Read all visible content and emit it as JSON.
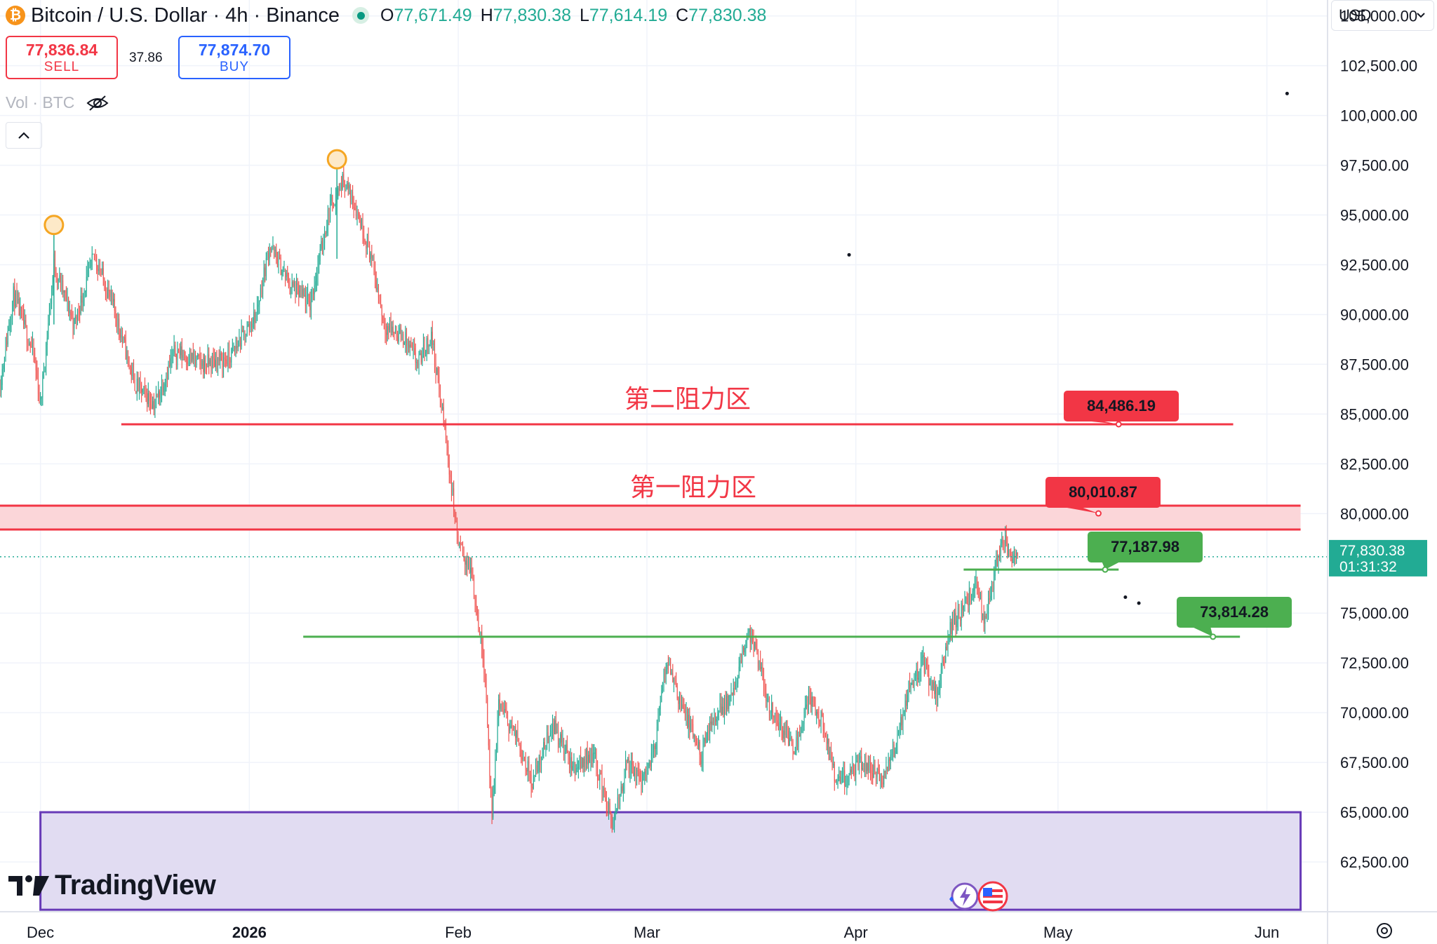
{
  "header": {
    "symbol_title": "Bitcoin / U.S. Dollar · 4h · Binance",
    "ohlc": {
      "open_label": "O",
      "open": "77,671.49",
      "high_label": "H",
      "high": "77,830.38",
      "low_label": "L",
      "low": "77,614.19",
      "close_label": "C",
      "close": "77,830.38"
    },
    "coin_icon": "bitcoin-icon"
  },
  "trade": {
    "sell_price": "77,836.84",
    "sell_label": "SELL",
    "spread": "37.86",
    "buy_price": "77,874.70",
    "buy_label": "BUY"
  },
  "volume_indicator": {
    "label": "Vol · BTC",
    "icon": "eye-crossed-icon"
  },
  "currency_selector": {
    "value": "USD"
  },
  "branding": {
    "logo_text": "TradingView"
  },
  "colors": {
    "up": "#22ab94",
    "down": "#ef5350",
    "resistance": "#f23645",
    "support": "#4caf50",
    "demand_zone_border": "#673ab7",
    "demand_zone_fill": "#e1dcf2",
    "last_price_tag": "#22ab94"
  },
  "chart_data": {
    "type": "candlestick",
    "timeframe": "4h",
    "x_axis": {
      "tick_labels": [
        {
          "label": "Dec",
          "date": "2025-12-01"
        },
        {
          "label": "2026",
          "date": "2026-01-01"
        },
        {
          "label": "Feb",
          "date": "2026-02-01"
        },
        {
          "label": "Mar",
          "date": "2026-03-01"
        },
        {
          "label": "Apr",
          "date": "2026-04-01"
        },
        {
          "label": "May",
          "date": "2026-05-01"
        },
        {
          "label": "Jun",
          "date": "2026-06-01"
        }
      ],
      "range": [
        "2025-11-25",
        "2026-06-10"
      ]
    },
    "y_axis": {
      "range": [
        60000,
        105800
      ],
      "tick_labels": [
        "105,000.00",
        "102,500.00",
        "100,000.00",
        "97,500.00",
        "95,000.00",
        "92,500.00",
        "90,000.00",
        "87,500.00",
        "85,000.00",
        "82,500.00",
        "80,000.00",
        "75,000.00",
        "72,500.00",
        "70,000.00",
        "67,500.00",
        "65,000.00",
        "62,500.00"
      ],
      "tick_values": [
        105000,
        102500,
        100000,
        97500,
        95000,
        92500,
        90000,
        87500,
        85000,
        82500,
        80000,
        75000,
        72500,
        70000,
        67500,
        65000,
        62500
      ]
    },
    "grid": true,
    "price_path": [
      {
        "date": "2025-11-25",
        "price": 86500
      },
      {
        "date": "2025-11-27",
        "price": 91000
      },
      {
        "date": "2025-11-30",
        "price": 88000
      },
      {
        "date": "2025-12-01",
        "price": 85500
      },
      {
        "date": "2025-12-03",
        "price": 92500
      },
      {
        "date": "2025-12-06",
        "price": 89500
      },
      {
        "date": "2025-12-09",
        "price": 93000
      },
      {
        "date": "2025-12-12",
        "price": 90200
      },
      {
        "date": "2025-12-15",
        "price": 86500
      },
      {
        "date": "2025-12-18",
        "price": 85500
      },
      {
        "date": "2025-12-21",
        "price": 88200
      },
      {
        "date": "2025-12-25",
        "price": 87500
      },
      {
        "date": "2025-12-29",
        "price": 87800
      },
      {
        "date": "2026-01-02",
        "price": 90000
      },
      {
        "date": "2026-01-04",
        "price": 93500
      },
      {
        "date": "2026-01-07",
        "price": 91500
      },
      {
        "date": "2026-01-10",
        "price": 90500
      },
      {
        "date": "2026-01-13",
        "price": 95500
      },
      {
        "date": "2026-01-15",
        "price": 96800
      },
      {
        "date": "2026-01-17",
        "price": 95200
      },
      {
        "date": "2026-01-19",
        "price": 93000
      },
      {
        "date": "2026-01-21",
        "price": 89500
      },
      {
        "date": "2026-01-24",
        "price": 88800
      },
      {
        "date": "2026-01-26",
        "price": 87500
      },
      {
        "date": "2026-01-28",
        "price": 89000
      },
      {
        "date": "2026-01-30",
        "price": 84200
      },
      {
        "date": "2026-02-01",
        "price": 78500
      },
      {
        "date": "2026-02-03",
        "price": 77000
      },
      {
        "date": "2026-02-05",
        "price": 72000
      },
      {
        "date": "2026-02-06",
        "price": 64500
      },
      {
        "date": "2026-02-07",
        "price": 70500
      },
      {
        "date": "2026-02-10",
        "price": 68500
      },
      {
        "date": "2026-02-12",
        "price": 66500
      },
      {
        "date": "2026-02-15",
        "price": 69500
      },
      {
        "date": "2026-02-18",
        "price": 67200
      },
      {
        "date": "2026-02-21",
        "price": 68000
      },
      {
        "date": "2026-02-24",
        "price": 64200
      },
      {
        "date": "2026-02-26",
        "price": 67500
      },
      {
        "date": "2026-02-28",
        "price": 66500
      },
      {
        "date": "2026-03-02",
        "price": 68000
      },
      {
        "date": "2026-03-04",
        "price": 72800
      },
      {
        "date": "2026-03-06",
        "price": 70500
      },
      {
        "date": "2026-03-09",
        "price": 67800
      },
      {
        "date": "2026-03-11",
        "price": 69800
      },
      {
        "date": "2026-03-14",
        "price": 71000
      },
      {
        "date": "2026-03-16",
        "price": 74200
      },
      {
        "date": "2026-03-17",
        "price": 73200
      },
      {
        "date": "2026-03-19",
        "price": 70500
      },
      {
        "date": "2026-03-21",
        "price": 69200
      },
      {
        "date": "2026-03-23",
        "price": 68300
      },
      {
        "date": "2026-03-25",
        "price": 70800
      },
      {
        "date": "2026-03-27",
        "price": 69500
      },
      {
        "date": "2026-03-29",
        "price": 66500
      },
      {
        "date": "2026-03-31",
        "price": 66800
      },
      {
        "date": "2026-04-02",
        "price": 67500
      },
      {
        "date": "2026-04-05",
        "price": 66600
      },
      {
        "date": "2026-04-07",
        "price": 68500
      },
      {
        "date": "2026-04-09",
        "price": 71500
      },
      {
        "date": "2026-04-11",
        "price": 72500
      },
      {
        "date": "2026-04-13",
        "price": 70800
      },
      {
        "date": "2026-04-15",
        "price": 74300
      },
      {
        "date": "2026-04-17",
        "price": 75300
      },
      {
        "date": "2026-04-19",
        "price": 76400
      },
      {
        "date": "2026-04-20",
        "price": 74600
      },
      {
        "date": "2026-04-22",
        "price": 77600
      },
      {
        "date": "2026-04-23",
        "price": 78600
      },
      {
        "date": "2026-04-24",
        "price": 77900
      },
      {
        "date": "2026-04-25",
        "price": 77830
      }
    ],
    "marked_highs": [
      {
        "date": "2025-12-03",
        "price": 94500
      },
      {
        "date": "2026-01-14",
        "price": 97800
      }
    ],
    "current_price": {
      "price": "77,830.38",
      "countdown": "01:31:32"
    },
    "annotations": {
      "resistance_2": {
        "label": "第二阻力区",
        "price_label": "84,486.19",
        "price": 84486.19,
        "from": "2025-12-13",
        "to": "2026-05-27"
      },
      "resistance_1": {
        "label": "第一阻力区",
        "price_label": "80,010.87",
        "price": 80010.87,
        "zone": [
          79200,
          80400
        ],
        "from": "2025-11-25",
        "to": "2026-06-06"
      },
      "support_1": {
        "price_label": "77,187.98",
        "price": 77187.98,
        "from": "2026-04-17",
        "to": "2026-05-10"
      },
      "support_2": {
        "price_label": "73,814.28",
        "price": 73814.28,
        "from": "2026-01-09",
        "to": "2026-05-28"
      },
      "demand_zone": {
        "from": "2025-12-01",
        "to": "2026-06-06",
        "top": 65000,
        "bottom": 60100
      }
    }
  }
}
